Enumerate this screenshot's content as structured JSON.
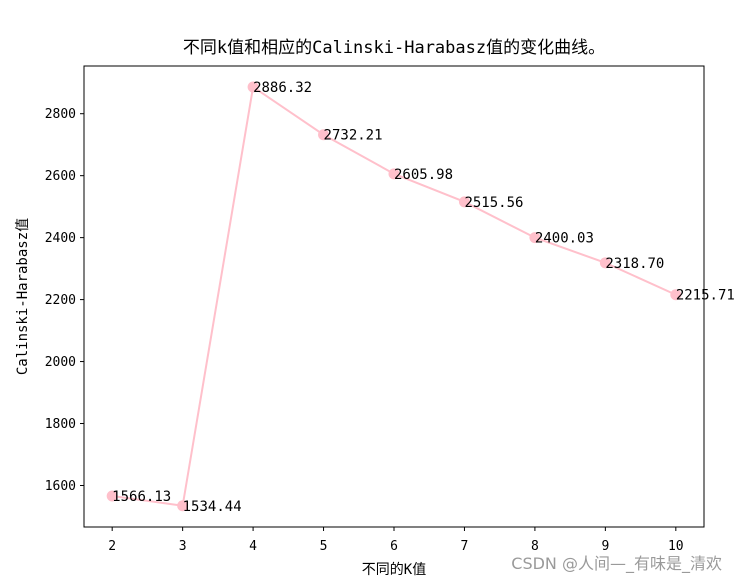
{
  "chart_data": {
    "type": "line",
    "title": "不同k值和相应的Calinski-Harabasz值的变化曲线。",
    "xlabel": "不同的K值",
    "ylabel": "Calinski-Harabasz值",
    "x": [
      2,
      3,
      4,
      5,
      6,
      7,
      8,
      9,
      10
    ],
    "series": [
      {
        "values": [
          1566.13,
          1534.44,
          2886.32,
          2732.21,
          2605.98,
          2515.56,
          2400.03,
          2318.7,
          2215.71
        ],
        "labels": [
          "1566.13",
          "1534.44",
          "2886.32",
          "2732.21",
          "2605.98",
          "2515.56",
          "2400.03",
          "2318.70",
          "2215.71"
        ]
      }
    ],
    "xticks": [
      "2",
      "3",
      "4",
      "5",
      "6",
      "7",
      "8",
      "9",
      "10"
    ],
    "yticks": [
      1600,
      1800,
      2000,
      2200,
      2400,
      2600,
      2800
    ],
    "xlim": [
      1.6,
      10.4
    ],
    "ylim": [
      1466,
      2954
    ],
    "grid": false,
    "colors": {
      "line": "#ffc0cb",
      "marker": "#ffc0cb"
    }
  },
  "watermark": "CSDN @人间—_有味是_清欢"
}
